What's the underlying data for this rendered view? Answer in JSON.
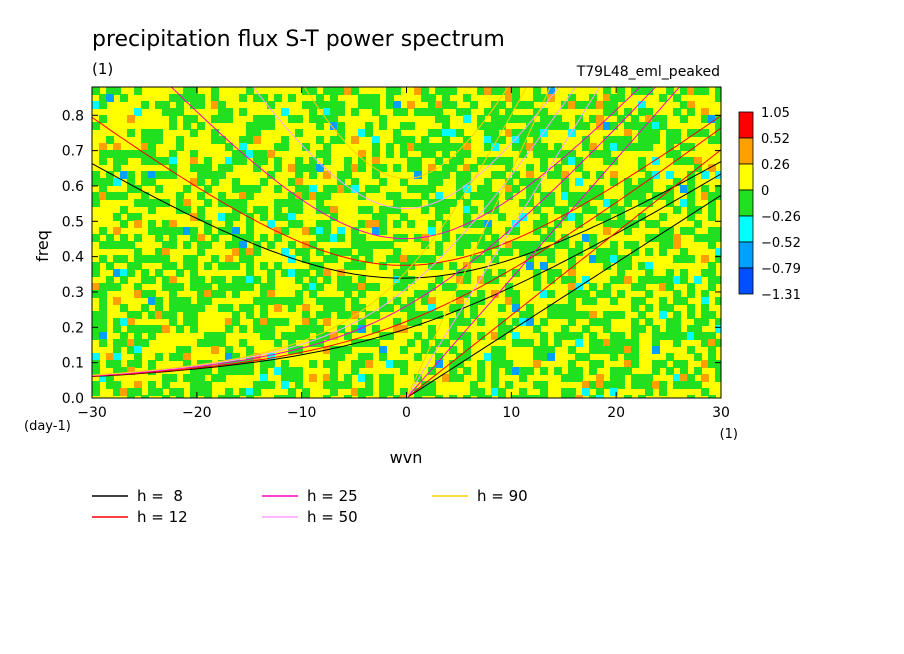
{
  "chart_data": {
    "type": "heatmap",
    "title": "precipitation flux S-T power spectrum",
    "subtitle_left": "(1)",
    "subtitle_right": "T79L48_eml_peaked",
    "xlabel": "wvn",
    "ylabel": "freq",
    "x_unit": "(1)",
    "y_unit": "(day-1)",
    "xlim": [
      -30,
      30
    ],
    "ylim": [
      0,
      0.88
    ],
    "xticks": [
      "−30",
      "−20",
      "−10",
      "0",
      "10",
      "20",
      "30"
    ],
    "xtick_values": [
      -30,
      -20,
      -10,
      0,
      10,
      20,
      30
    ],
    "yticks": [
      "0.0",
      "0.1",
      "0.2",
      "0.3",
      "0.4",
      "0.5",
      "0.6",
      "0.7",
      "0.8"
    ],
    "ytick_values": [
      0,
      0.1,
      0.2,
      0.3,
      0.4,
      0.5,
      0.6,
      0.7,
      0.8
    ],
    "colorbar": {
      "labels": [
        "1.05",
        "0.52",
        "0.26",
        "0",
        "−0.26",
        "−0.52",
        "−0.79",
        "−1.31"
      ],
      "colors": [
        "#ff0000",
        "#ffa000",
        "#ffff00",
        "#20e020",
        "#00ffff",
        "#00a0ff",
        "#0050ff"
      ]
    },
    "field_colors": {
      "yellow": "#ffff00",
      "green": "#20e020",
      "orange": "#ffa000",
      "cyan": "#00ffff",
      "blue": "#00a0ff",
      "red": "#ff0000"
    },
    "dispersion_curves": [
      {
        "name": "h =  8",
        "color": "#000000"
      },
      {
        "name": "h = 12",
        "color": "#ff0000"
      },
      {
        "name": "h = 25",
        "color": "#ff00c0"
      },
      {
        "name": "h = 50",
        "color": "#ffa0ff"
      },
      {
        "name": "h = 90",
        "color": "#ffd000"
      }
    ]
  }
}
